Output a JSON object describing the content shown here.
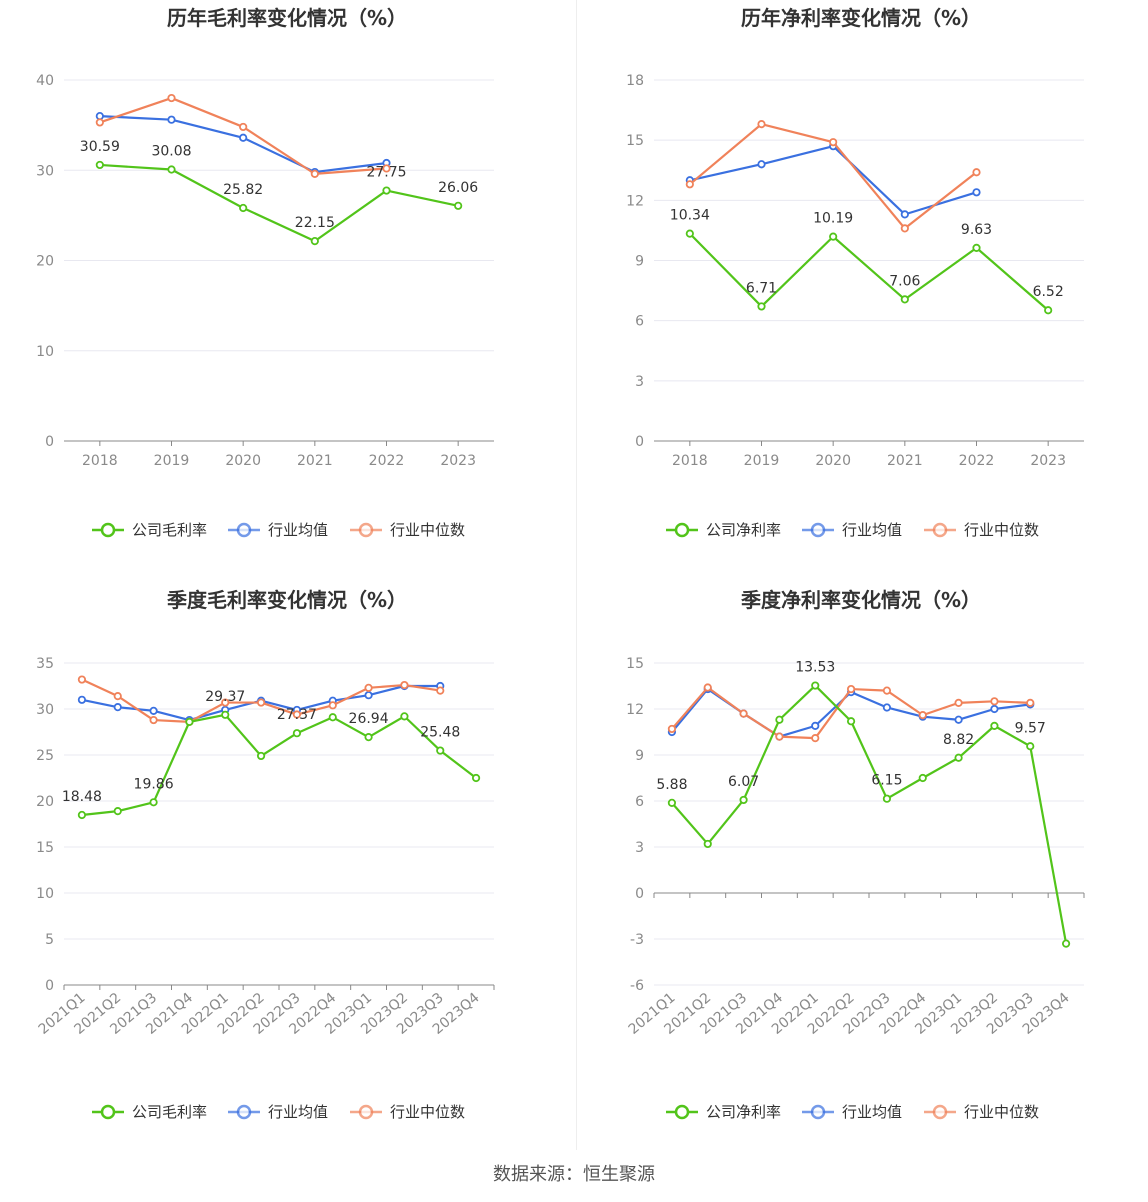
{
  "source": "数据来源：恒生聚源",
  "colors": {
    "company": "#52c41a",
    "avg": "#3a70e0",
    "median": "#f0825a",
    "grid": "#e8e8f0",
    "axis": "#888888"
  },
  "chart_data": [
    {
      "type": "line",
      "title": "历年毛利率变化情况（%）",
      "categories": [
        "2018",
        "2019",
        "2020",
        "2021",
        "2022",
        "2023"
      ],
      "ylim": [
        0,
        40
      ],
      "yticks": [
        "0",
        "10",
        "20",
        "30",
        "40"
      ],
      "grid": true,
      "legend": "bottom",
      "series": [
        {
          "name": "公司毛利率",
          "color": "#52c41a",
          "values": [
            30.59,
            30.08,
            25.82,
            22.15,
            27.75,
            26.06
          ],
          "labels": [
            "30.59",
            "30.08",
            "25.82",
            "22.15",
            "27.75",
            "26.06"
          ]
        },
        {
          "name": "行业均值",
          "color": "#3a70e0",
          "values": [
            36.0,
            35.6,
            33.6,
            29.8,
            30.8,
            null
          ]
        },
        {
          "name": "行业中位数",
          "color": "#f0825a",
          "values": [
            35.3,
            38.0,
            34.8,
            29.6,
            30.2,
            null
          ]
        }
      ]
    },
    {
      "type": "line",
      "title": "历年净利率变化情况（%）",
      "categories": [
        "2018",
        "2019",
        "2020",
        "2021",
        "2022",
        "2023"
      ],
      "ylim": [
        0,
        18
      ],
      "yticks": [
        "0",
        "3",
        "6",
        "9",
        "12",
        "15",
        "18"
      ],
      "grid": true,
      "legend": "bottom",
      "series": [
        {
          "name": "公司净利率",
          "color": "#52c41a",
          "values": [
            10.34,
            6.71,
            10.19,
            7.06,
            9.63,
            6.52
          ],
          "labels": [
            "10.34",
            "6.71",
            "10.19",
            "7.06",
            "9.63",
            "6.52"
          ]
        },
        {
          "name": "行业均值",
          "color": "#3a70e0",
          "values": [
            13.0,
            13.8,
            14.7,
            11.3,
            12.4,
            null
          ]
        },
        {
          "name": "行业中位数",
          "color": "#f0825a",
          "values": [
            12.8,
            15.8,
            14.9,
            10.6,
            13.4,
            null
          ]
        }
      ]
    },
    {
      "type": "line",
      "title": "季度毛利率变化情况（%）",
      "categories": [
        "2021Q1",
        "2021Q2",
        "2021Q3",
        "2021Q4",
        "2022Q1",
        "2022Q2",
        "2022Q3",
        "2022Q4",
        "2023Q1",
        "2023Q2",
        "2023Q3",
        "2023Q4"
      ],
      "ylim": [
        0,
        35
      ],
      "yticks": [
        "0",
        "5",
        "10",
        "15",
        "20",
        "25",
        "30",
        "35"
      ],
      "grid": true,
      "legend": "bottom",
      "series": [
        {
          "name": "公司毛利率",
          "color": "#52c41a",
          "values": [
            18.48,
            18.9,
            19.86,
            28.6,
            29.37,
            24.9,
            27.37,
            29.1,
            26.94,
            29.2,
            25.48,
            22.5
          ],
          "labels": [
            "18.48",
            "",
            "19.86",
            "",
            "29.37",
            "",
            "27.37",
            "",
            "26.94",
            "",
            "25.48",
            ""
          ]
        },
        {
          "name": "行业均值",
          "color": "#3a70e0",
          "values": [
            31.0,
            30.2,
            29.8,
            28.8,
            29.9,
            30.9,
            29.9,
            30.9,
            31.5,
            32.5,
            32.5,
            null
          ]
        },
        {
          "name": "行业中位数",
          "color": "#f0825a",
          "values": [
            33.2,
            31.4,
            28.8,
            28.6,
            30.7,
            30.7,
            29.4,
            30.4,
            32.3,
            32.6,
            32.0,
            null
          ]
        }
      ]
    },
    {
      "type": "line",
      "title": "季度净利率变化情况（%）",
      "categories": [
        "2021Q1",
        "2021Q2",
        "2021Q3",
        "2021Q4",
        "2022Q1",
        "2022Q2",
        "2022Q3",
        "2022Q4",
        "2023Q1",
        "2023Q2",
        "2023Q3",
        "2023Q4"
      ],
      "ylim": [
        -6,
        15
      ],
      "yticks": [
        "-6",
        "-3",
        "0",
        "3",
        "6",
        "9",
        "12",
        "15"
      ],
      "grid": true,
      "legend": "bottom",
      "series": [
        {
          "name": "公司净利率",
          "color": "#52c41a",
          "values": [
            5.88,
            3.2,
            6.07,
            11.3,
            13.53,
            11.2,
            6.15,
            7.5,
            8.82,
            10.9,
            9.57,
            -3.3
          ],
          "labels": [
            "5.88",
            "",
            "6.07",
            "",
            "13.53",
            "",
            "6.15",
            "",
            "8.82",
            "",
            "9.57",
            ""
          ]
        },
        {
          "name": "行业均值",
          "color": "#3a70e0",
          "values": [
            10.5,
            13.3,
            11.7,
            10.2,
            10.9,
            13.1,
            12.1,
            11.5,
            11.3,
            12.0,
            12.3,
            null
          ]
        },
        {
          "name": "行业中位数",
          "color": "#f0825a",
          "values": [
            10.7,
            13.4,
            11.7,
            10.2,
            10.1,
            13.3,
            13.2,
            11.6,
            12.4,
            12.5,
            12.4,
            null
          ]
        }
      ]
    }
  ]
}
